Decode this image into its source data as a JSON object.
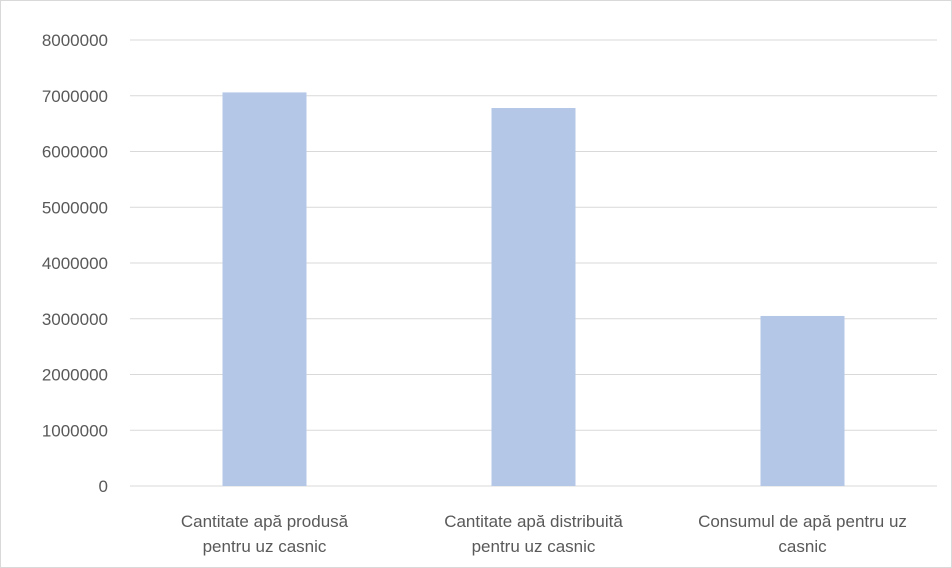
{
  "chart_data": {
    "type": "bar",
    "categories": [
      [
        "Cantitate apă produsă",
        "pentru uz casnic"
      ],
      [
        "Cantitate apă distribuită",
        "pentru uz casnic"
      ],
      [
        "Consumul de apă pentru uz",
        "casnic"
      ]
    ],
    "values": [
      7060000,
      6780000,
      3050000
    ],
    "ylim": [
      0,
      8000000
    ],
    "yticks": [
      "0",
      "1000000",
      "2000000",
      "3000000",
      "4000000",
      "5000000",
      "6000000",
      "7000000",
      "8000000"
    ],
    "title": "",
    "xlabel": "",
    "ylabel": "",
    "grid": true,
    "legend": "none",
    "bar_color": "#b4c7e7",
    "grid_color": "#d9d9d9",
    "text_color": "#595959"
  }
}
